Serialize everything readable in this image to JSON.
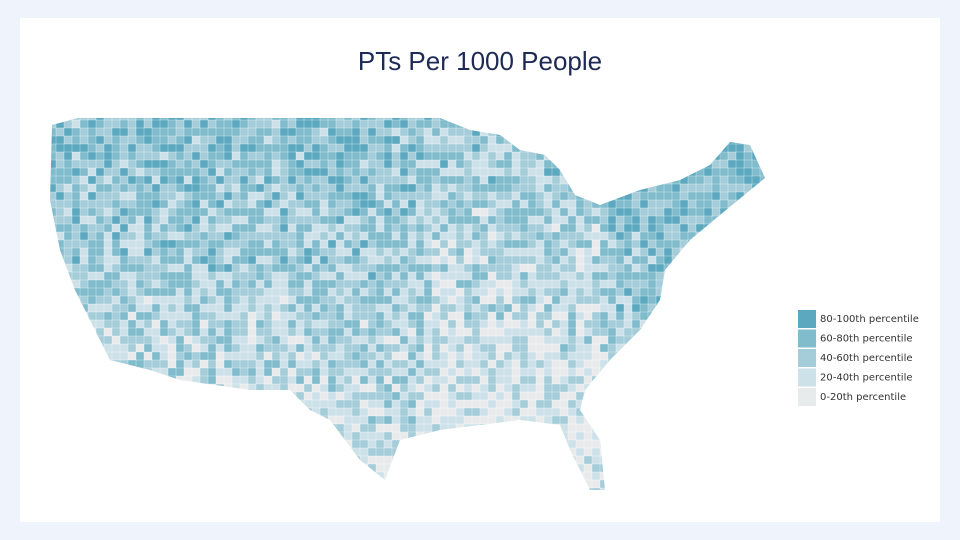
{
  "title": "PTs Per 1000 People",
  "legend": {
    "items": [
      {
        "label": "80-100th percentile",
        "color": "#5ba8bf"
      },
      {
        "label": "60-80th percentile",
        "color": "#80bccc"
      },
      {
        "label": "40-60th percentile",
        "color": "#a5cdd9"
      },
      {
        "label": "20-40th percentile",
        "color": "#cde1e8"
      },
      {
        "label": "0-20th percentile",
        "color": "#e8ebec"
      }
    ]
  }
}
